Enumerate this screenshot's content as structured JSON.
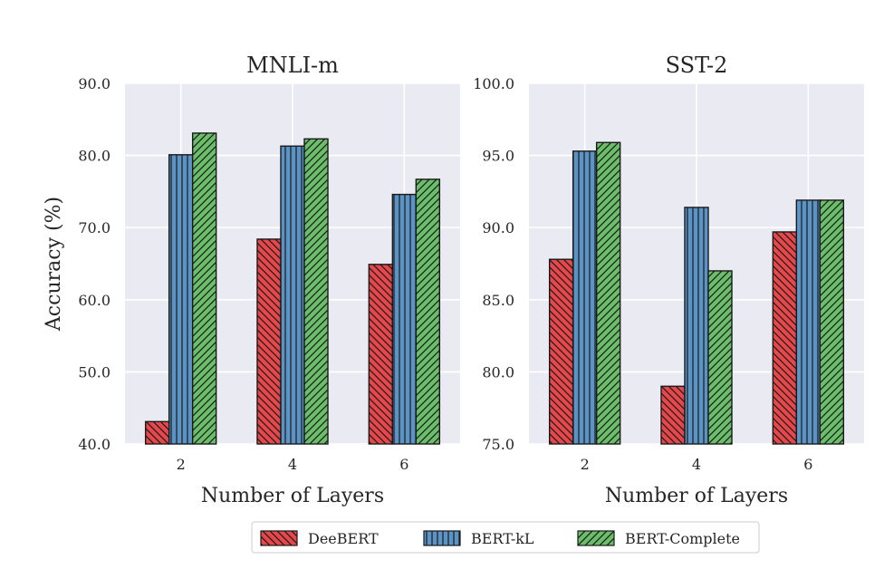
{
  "chart_data": [
    {
      "type": "bar",
      "title": "MNLI-m",
      "xlabel": "Number of Layers",
      "ylabel": "Accuracy (%)",
      "categories": [
        "2",
        "4",
        "6"
      ],
      "ylim": [
        40,
        90
      ],
      "yticks": [
        "40.0",
        "50.0",
        "60.0",
        "70.0",
        "80.0",
        "90.0"
      ],
      "grid": true,
      "series": [
        {
          "name": "DeeBERT",
          "values": [
            43.1,
            68.4,
            64.9
          ]
        },
        {
          "name": "BERT-kL",
          "values": [
            80.1,
            81.3,
            74.6
          ]
        },
        {
          "name": "BERT-Complete",
          "values": [
            83.1,
            82.3,
            76.7
          ]
        }
      ]
    },
    {
      "type": "bar",
      "title": "SST-2",
      "xlabel": "Number of Layers",
      "ylabel": "",
      "categories": [
        "2",
        "4",
        "6"
      ],
      "ylim": [
        75,
        100
      ],
      "yticks": [
        "75.0",
        "80.0",
        "85.0",
        "90.0",
        "95.0",
        "100.0"
      ],
      "grid": true,
      "series": [
        {
          "name": "DeeBERT",
          "values": [
            87.8,
            79.0,
            89.7
          ]
        },
        {
          "name": "BERT-kL",
          "values": [
            95.3,
            91.4,
            91.9
          ]
        },
        {
          "name": "BERT-Complete",
          "values": [
            95.9,
            87.0,
            91.9
          ]
        }
      ]
    }
  ],
  "legend": {
    "position": "bottom-center",
    "items": [
      "DeeBERT",
      "BERT-kL",
      "BERT-Complete"
    ]
  },
  "colors": {
    "DeeBERT": "#e6474a",
    "BERT-kL": "#5b93c4",
    "BERT-Complete": "#6cbf6a",
    "panel_bg": "#eaeaf2",
    "grid": "#ffffff",
    "bar_edge": "#1a1a1a"
  }
}
